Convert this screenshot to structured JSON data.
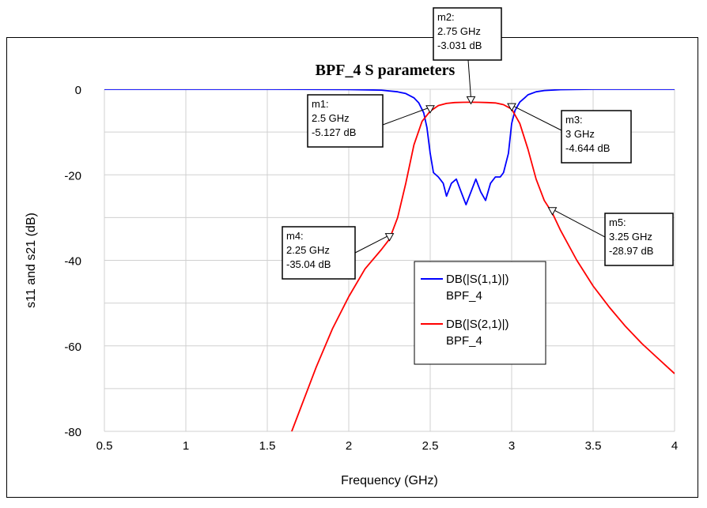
{
  "chart_data": {
    "type": "line",
    "title": "BPF_4   S parameters",
    "xlabel": "Frequency (GHz)",
    "ylabel": "s11 and s21 (dB)",
    "xlim": [
      0.5,
      4
    ],
    "ylim": [
      -80,
      0
    ],
    "xticks": [
      "0.5",
      "1",
      "1.5",
      "2",
      "2.5",
      "3",
      "3.5",
      "4"
    ],
    "yticks": [
      "0",
      "-20",
      "-40",
      "-60",
      "-80"
    ],
    "grid": true,
    "legend_position": "center-right",
    "series": [
      {
        "name": "DB(|S(1,1)|)",
        "sub": "BPF_4",
        "color": "#0000ff",
        "x": [
          0.5,
          1.0,
          1.5,
          2.0,
          2.2,
          2.3,
          2.35,
          2.4,
          2.43,
          2.46,
          2.48,
          2.5,
          2.52,
          2.55,
          2.58,
          2.6,
          2.63,
          2.66,
          2.69,
          2.72,
          2.75,
          2.78,
          2.81,
          2.84,
          2.87,
          2.9,
          2.93,
          2.95,
          2.98,
          3.0,
          3.02,
          3.05,
          3.08,
          3.1,
          3.15,
          3.2,
          3.3,
          3.5,
          4.0
        ],
        "y": [
          0,
          0,
          0,
          -0.05,
          -0.2,
          -0.6,
          -1,
          -2,
          -3.2,
          -5.5,
          -9,
          -15,
          -19.5,
          -20.5,
          -22,
          -25,
          -22,
          -21,
          -24,
          -27,
          -24,
          -21,
          -24,
          -26,
          -22,
          -20.5,
          -20.5,
          -19.5,
          -15,
          -8,
          -5,
          -3,
          -2,
          -1.3,
          -0.6,
          -0.3,
          -0.1,
          0,
          0
        ]
      },
      {
        "name": "DB(|S(2,1)|)",
        "sub": "BPF_4",
        "color": "#ff0000",
        "x": [
          1.65,
          1.8,
          1.9,
          2.0,
          2.1,
          2.2,
          2.25,
          2.3,
          2.35,
          2.4,
          2.45,
          2.5,
          2.55,
          2.6,
          2.65,
          2.7,
          2.75,
          2.8,
          2.85,
          2.9,
          2.95,
          3.0,
          3.05,
          3.1,
          3.15,
          3.2,
          3.25,
          3.3,
          3.4,
          3.5,
          3.6,
          3.7,
          3.8,
          3.9,
          4.0
        ],
        "y": [
          -80,
          -65,
          -56,
          -48.5,
          -42,
          -37.5,
          -35.04,
          -30,
          -22,
          -13,
          -7.5,
          -5.127,
          -3.8,
          -3.3,
          -3.1,
          -3.05,
          -3.031,
          -3.05,
          -3.1,
          -3.2,
          -3.6,
          -4.644,
          -8,
          -14,
          -21,
          -26,
          -28.97,
          -33,
          -40,
          -46,
          -51,
          -55.5,
          -59.5,
          -63,
          -66.5
        ]
      }
    ],
    "markers": [
      {
        "id": "m1",
        "freq": "2.5 GHz",
        "value": "-5.127 dB",
        "x": 2.5,
        "y": -5.127
      },
      {
        "id": "m2",
        "freq": "2.75 GHz",
        "value": "-3.031 dB",
        "x": 2.75,
        "y": -3.031
      },
      {
        "id": "m3",
        "freq": "3 GHz",
        "value": "-4.644 dB",
        "x": 3.0,
        "y": -4.644
      },
      {
        "id": "m4",
        "freq": "2.25 GHz",
        "value": "-35.04 dB",
        "x": 2.25,
        "y": -35.04
      },
      {
        "id": "m5",
        "freq": "3.25 GHz",
        "value": "-28.97 dB",
        "x": 3.25,
        "y": -28.97
      }
    ]
  }
}
